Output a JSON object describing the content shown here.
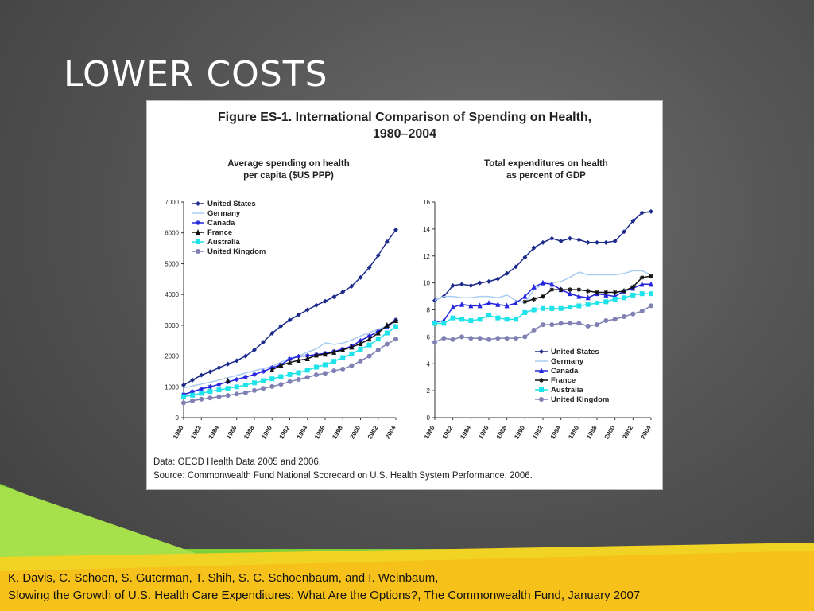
{
  "slide": {
    "title": "LOWER COSTS",
    "citation_line1": "K. Davis, C. Schoen, S. Guterman, T. Shih, S. C. Schoenbaum, and I. Weinbaum,",
    "citation_line2": "Slowing the Growth of U.S. Health Care Expenditures: What Are the Options?, The Commonwealth Fund, January 2007"
  },
  "figure": {
    "title_line1": "Figure ES-1. International Comparison of Spending on Health,",
    "title_line2": "1980–2004",
    "data_note": "Data: OECD Health Data 2005 and 2006.",
    "source_note": "Source: Commonwealth Fund National Scorecard on U.S. Health System Performance, 2006."
  },
  "colors": {
    "United States": "#1c2a8c",
    "Germany": "#a9cdf2",
    "Canada": "#2424e0",
    "France": "#111111",
    "Australia": "#1ee3e8",
    "United Kingdom": "#8080b4"
  },
  "chart_data": [
    {
      "type": "line",
      "title_line1": "Average spending on health",
      "title_line2": "per capita ($US PPP)",
      "xlabel": "",
      "ylabel": "",
      "ylim": [
        0,
        7000
      ],
      "yticks": [
        0,
        1000,
        2000,
        3000,
        4000,
        5000,
        6000,
        7000
      ],
      "xticks": [
        "1980",
        "1982",
        "1984",
        "1986",
        "1988",
        "1990",
        "1992",
        "1994",
        "1996",
        "1998",
        "2000",
        "2002",
        "2004"
      ],
      "legend_position": "top-left",
      "x": [
        1980,
        1981,
        1982,
        1983,
        1984,
        1985,
        1986,
        1987,
        1988,
        1989,
        1990,
        1991,
        1992,
        1993,
        1994,
        1995,
        1996,
        1997,
        1998,
        1999,
        2000,
        2001,
        2002,
        2003,
        2004
      ],
      "series": [
        {
          "name": "United States",
          "marker": "diamond",
          "values": [
            1060,
            1220,
            1380,
            1490,
            1620,
            1740,
            1850,
            2000,
            2200,
            2450,
            2740,
            2970,
            3170,
            3340,
            3500,
            3650,
            3780,
            3920,
            4080,
            4270,
            4550,
            4880,
            5270,
            5710,
            6100
          ]
        },
        {
          "name": "Germany",
          "marker": "none",
          "values": [
            960,
            1030,
            1090,
            1150,
            1220,
            1300,
            1370,
            1450,
            1530,
            1590,
            1660,
            1800,
            1930,
            2000,
            2130,
            2230,
            2430,
            2380,
            2420,
            2520,
            2650,
            2760,
            2870,
            2980,
            3040
          ]
        },
        {
          "name": "Canada",
          "marker": "star",
          "values": [
            750,
            840,
            930,
            1000,
            1080,
            1160,
            1240,
            1320,
            1400,
            1500,
            1620,
            1720,
            1900,
            1990,
            2010,
            2050,
            2090,
            2150,
            2230,
            2320,
            2500,
            2650,
            2800,
            2950,
            3170
          ]
        },
        {
          "name": "France",
          "marker": "triangle",
          "values": [
            null,
            null,
            null,
            null,
            null,
            1200,
            null,
            null,
            null,
            null,
            1550,
            1700,
            1790,
            1860,
            1910,
            2030,
            2060,
            2120,
            2200,
            2290,
            2400,
            2550,
            2750,
            3000,
            3150
          ]
        },
        {
          "name": "Australia",
          "marker": "square",
          "values": [
            680,
            730,
            790,
            850,
            900,
            950,
            1000,
            1060,
            1130,
            1200,
            1260,
            1330,
            1400,
            1460,
            1540,
            1640,
            1720,
            1830,
            1950,
            2070,
            2220,
            2360,
            2550,
            2750,
            2950
          ]
        },
        {
          "name": "United Kingdom",
          "marker": "circle",
          "values": [
            480,
            550,
            600,
            640,
            680,
            720,
            770,
            810,
            880,
            950,
            1010,
            1080,
            1170,
            1240,
            1310,
            1390,
            1440,
            1520,
            1580,
            1690,
            1840,
            2000,
            2200,
            2390,
            2550
          ]
        }
      ]
    },
    {
      "type": "line",
      "title_line1": "Total expenditures on health",
      "title_line2": "as percent of GDP",
      "xlabel": "",
      "ylabel": "",
      "ylim": [
        0,
        16
      ],
      "yticks": [
        0,
        2,
        4,
        6,
        8,
        10,
        12,
        14,
        16
      ],
      "xticks": [
        "1980",
        "1982",
        "1984",
        "1986",
        "1988",
        "1990",
        "1992",
        "1994",
        "1996",
        "1998",
        "2000",
        "2002",
        "2004"
      ],
      "legend_position": "bottom-right",
      "x": [
        1980,
        1981,
        1982,
        1983,
        1984,
        1985,
        1986,
        1987,
        1988,
        1989,
        1990,
        1991,
        1992,
        1993,
        1994,
        1995,
        1996,
        1997,
        1998,
        1999,
        2000,
        2001,
        2002,
        2003,
        2004
      ],
      "series": [
        {
          "name": "United States",
          "marker": "diamond",
          "values": [
            8.7,
            9.0,
            9.8,
            9.9,
            9.8,
            10.0,
            10.1,
            10.3,
            10.7,
            11.2,
            11.9,
            12.6,
            13.0,
            13.3,
            13.1,
            13.3,
            13.2,
            13.0,
            13.0,
            13.0,
            13.1,
            13.8,
            14.6,
            15.2,
            15.3
          ]
        },
        {
          "name": "Germany",
          "marker": "none",
          "values": [
            8.7,
            9.0,
            9.0,
            8.9,
            8.9,
            9.0,
            9.0,
            8.9,
            9.1,
            8.7,
            8.5,
            9.5,
            9.9,
            10.0,
            10.1,
            10.4,
            10.8,
            10.6,
            10.6,
            10.6,
            10.6,
            10.7,
            10.9,
            10.9,
            10.6
          ]
        },
        {
          "name": "Canada",
          "marker": "triangle",
          "values": [
            7.1,
            7.2,
            8.2,
            8.4,
            8.3,
            8.3,
            8.5,
            8.4,
            8.3,
            8.5,
            9.0,
            9.7,
            10.0,
            9.9,
            9.5,
            9.2,
            9.0,
            8.9,
            9.2,
            9.1,
            9.0,
            9.4,
            9.6,
            9.9,
            9.9
          ]
        },
        {
          "name": "France",
          "marker": "star",
          "values": [
            null,
            null,
            null,
            null,
            null,
            null,
            null,
            null,
            null,
            null,
            8.6,
            8.8,
            9.0,
            9.5,
            9.5,
            9.5,
            9.5,
            9.4,
            9.3,
            9.3,
            9.3,
            9.4,
            9.7,
            10.4,
            10.5
          ]
        },
        {
          "name": "Australia",
          "marker": "square",
          "values": [
            7.0,
            7.0,
            7.4,
            7.3,
            7.2,
            7.3,
            7.6,
            7.4,
            7.3,
            7.3,
            7.8,
            8.0,
            8.1,
            8.1,
            8.1,
            8.2,
            8.3,
            8.4,
            8.5,
            8.6,
            8.8,
            8.9,
            9.1,
            9.2,
            9.2
          ]
        },
        {
          "name": "United Kingdom",
          "marker": "circle",
          "values": [
            5.6,
            5.9,
            5.8,
            6.0,
            5.9,
            5.9,
            5.8,
            5.9,
            5.9,
            5.9,
            6.0,
            6.5,
            6.9,
            6.9,
            7.0,
            7.0,
            7.0,
            6.8,
            6.9,
            7.2,
            7.3,
            7.5,
            7.7,
            7.9,
            8.3
          ]
        }
      ]
    }
  ]
}
